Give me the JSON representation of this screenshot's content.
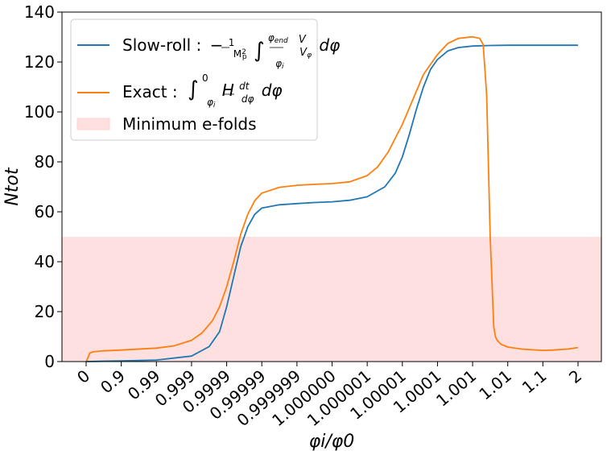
{
  "chart_data": {
    "type": "line",
    "xlabel": "φi/φ0",
    "ylabel": "Ntot",
    "ylim": [
      0,
      140
    ],
    "yticks": [
      "0",
      "20",
      "40",
      "60",
      "80",
      "100",
      "120",
      "140"
    ],
    "xticks": [
      "0",
      "0.9",
      "0.99",
      "0.999",
      "0.9999",
      "0.99999",
      "0.999999",
      "1.000000",
      "1.000001",
      "1.00001",
      "1.0001",
      "1.001",
      "1.01",
      "1.1",
      "2"
    ],
    "legend_position": "top-left",
    "shaded_band": {
      "name": "Minimum e-folds",
      "ymin": 0,
      "ymax": 50,
      "color": "#ffe0e0"
    },
    "series": [
      {
        "name": "Slow-roll : −(1/Mp²)∫φi^φend (V/Vφ) dφ",
        "color": "#1f77b4",
        "x_tick_index": [
          0,
          1,
          2,
          3,
          3.5,
          3.8,
          4.0,
          4.2,
          4.4,
          4.6,
          4.8,
          5.0,
          5.5,
          6.0,
          6.5,
          7.0,
          7.5,
          8.0,
          8.5,
          8.8,
          9.0,
          9.2,
          9.4,
          9.6,
          9.8,
          10.0,
          10.3,
          10.6,
          11.0,
          11.5,
          12.0,
          12.5,
          13.0,
          13.5,
          14.0
        ],
        "y": [
          0,
          0.3,
          0.6,
          2.2,
          6,
          12,
          22,
          34,
          46,
          54,
          59,
          61.5,
          62.8,
          63.3,
          63.7,
          64.0,
          64.6,
          66.0,
          70.0,
          75.5,
          82,
          91,
          101,
          110,
          117,
          121,
          124.5,
          125.8,
          126.4,
          126.6,
          126.7,
          126.7,
          126.7,
          126.7,
          126.7
        ]
      },
      {
        "name": "Exact : ∫φi^0 H (dt/dφ) dφ",
        "color": "#ff7f0e",
        "x_tick_index": [
          0,
          0.05,
          0.1,
          0.2,
          0.5,
          1,
          2,
          2.5,
          3,
          3.3,
          3.6,
          3.8,
          4.0,
          4.2,
          4.4,
          4.6,
          4.8,
          5.0,
          5.5,
          6.0,
          6.5,
          7.0,
          7.5,
          8.0,
          8.3,
          8.6,
          9.0,
          9.3,
          9.6,
          10.0,
          10.3,
          10.6,
          11.0,
          11.2,
          11.3,
          11.4,
          11.5,
          11.6,
          11.65,
          11.7,
          11.8,
          12.0,
          12.4,
          12.7,
          13.0,
          13.3,
          13.7,
          14.0
        ],
        "y": [
          0,
          1.5,
          3.4,
          3.9,
          4.3,
          4.6,
          5.4,
          6.3,
          8.5,
          11.5,
          16.5,
          22,
          30,
          40,
          51,
          59,
          64.5,
          67.5,
          69.8,
          70.6,
          71.0,
          71.3,
          72.0,
          74.5,
          78,
          84,
          95,
          105,
          115,
          123,
          127.5,
          129.5,
          130.1,
          129.5,
          127,
          107,
          50,
          14,
          10,
          8.5,
          7,
          5.8,
          5.0,
          4.7,
          4.5,
          4.6,
          5.0,
          5.6
        ]
      }
    ]
  }
}
